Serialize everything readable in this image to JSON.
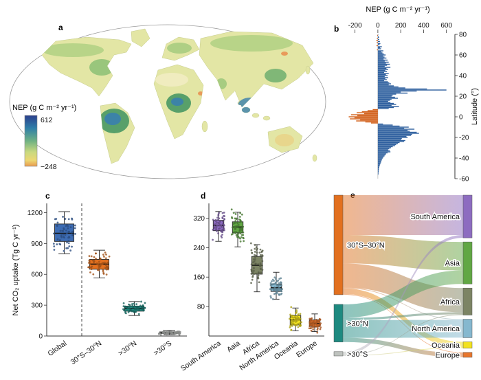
{
  "panel_a": {
    "label": "a",
    "legend_title": "NEP (g C m⁻² yr⁻¹)",
    "legend_max": "612",
    "legend_min": "−248"
  },
  "panel_b": {
    "label": "b",
    "title": "NEP (g C m⁻² yr⁻¹)",
    "ylabel": "Latitude (°)"
  },
  "panel_c": {
    "label": "c",
    "ylabel": "Net CO₂ uptake (Tg C yr⁻¹)"
  },
  "panel_d": {
    "label": "d"
  },
  "panel_e": {
    "label": "e"
  },
  "chart_data": [
    {
      "id": "a",
      "type": "heatmap",
      "title": "Global NEP map",
      "colorbar": {
        "title": "NEP (g C m⁻² yr⁻¹)",
        "min": -248,
        "max": 612
      }
    },
    {
      "id": "b",
      "type": "bar",
      "orientation": "horizontal",
      "title": "NEP (g C m⁻² yr⁻¹)",
      "ylabel": "Latitude (°)",
      "xlim": [
        -300,
        650
      ],
      "ylim": [
        -60,
        80
      ],
      "x_ticks": [
        -200,
        0,
        200,
        400,
        600
      ],
      "y_ticks": [
        80,
        60,
        40,
        20,
        0,
        -20,
        -40,
        -60
      ],
      "positive_color": "#2e5f9e",
      "negative_color": "#d2601a",
      "points": [
        [
          80,
          3
        ],
        [
          79,
          -6
        ],
        [
          78,
          6
        ],
        [
          77,
          10
        ],
        [
          76,
          -8
        ],
        [
          75,
          12
        ],
        [
          74,
          -14
        ],
        [
          73,
          18
        ],
        [
          72,
          -10
        ],
        [
          71,
          22
        ],
        [
          70,
          15
        ],
        [
          69,
          -12
        ],
        [
          68,
          35
        ],
        [
          67,
          20
        ],
        [
          66,
          28
        ],
        [
          65,
          -8
        ],
        [
          64,
          48
        ],
        [
          63,
          30
        ],
        [
          62,
          40
        ],
        [
          61,
          52
        ],
        [
          60,
          68
        ],
        [
          59,
          45
        ],
        [
          58,
          58
        ],
        [
          57,
          75
        ],
        [
          56,
          50
        ],
        [
          55,
          85
        ],
        [
          54,
          60
        ],
        [
          53,
          95
        ],
        [
          52,
          70
        ],
        [
          51,
          105
        ],
        [
          50,
          80
        ],
        [
          49,
          60
        ],
        [
          48,
          110
        ],
        [
          47,
          75
        ],
        [
          46,
          90
        ],
        [
          45,
          65
        ],
        [
          44,
          80
        ],
        [
          43,
          55
        ],
        [
          42,
          95
        ],
        [
          41,
          70
        ],
        [
          40,
          85
        ],
        [
          39,
          60
        ],
        [
          38,
          90
        ],
        [
          37,
          65
        ],
        [
          36,
          78
        ],
        [
          35,
          55
        ],
        [
          34,
          88
        ],
        [
          33,
          100
        ],
        [
          32,
          115
        ],
        [
          31,
          95
        ],
        [
          30,
          140
        ],
        [
          29,
          180
        ],
        [
          28,
          240
        ],
        [
          27,
          430
        ],
        [
          26,
          600
        ],
        [
          25,
          340
        ],
        [
          24,
          200
        ],
        [
          23,
          260
        ],
        [
          22,
          160
        ],
        [
          21,
          130
        ],
        [
          20,
          120
        ],
        [
          19,
          150
        ],
        [
          18,
          175
        ],
        [
          17,
          120
        ],
        [
          16,
          105
        ],
        [
          15,
          90
        ],
        [
          14,
          110
        ],
        [
          13,
          140
        ],
        [
          12,
          160
        ],
        [
          11,
          120
        ],
        [
          10,
          185
        ],
        [
          9,
          140
        ],
        [
          8,
          95
        ],
        [
          7,
          -45
        ],
        [
          6,
          -90
        ],
        [
          5,
          -140
        ],
        [
          4,
          -185
        ],
        [
          3,
          -120
        ],
        [
          2,
          -235
        ],
        [
          1,
          -180
        ],
        [
          0,
          -255
        ],
        [
          -1,
          -205
        ],
        [
          -2,
          -245
        ],
        [
          -3,
          -155
        ],
        [
          -4,
          -190
        ],
        [
          -5,
          -110
        ],
        [
          -6,
          -60
        ],
        [
          -7,
          45
        ],
        [
          -8,
          130
        ],
        [
          -9,
          190
        ],
        [
          -10,
          270
        ],
        [
          -11,
          230
        ],
        [
          -12,
          320
        ],
        [
          -13,
          260
        ],
        [
          -14,
          280
        ],
        [
          -15,
          340
        ],
        [
          -16,
          360
        ],
        [
          -17,
          300
        ],
        [
          -18,
          290
        ],
        [
          -19,
          250
        ],
        [
          -20,
          260
        ],
        [
          -21,
          210
        ],
        [
          -22,
          205
        ],
        [
          -23,
          240
        ],
        [
          -24,
          230
        ],
        [
          -25,
          190
        ],
        [
          -26,
          175
        ],
        [
          -27,
          160
        ],
        [
          -28,
          150
        ],
        [
          -29,
          130
        ],
        [
          -30,
          115
        ],
        [
          -31,
          100
        ],
        [
          -32,
          90
        ],
        [
          -33,
          105
        ],
        [
          -34,
          110
        ],
        [
          -35,
          85
        ],
        [
          -36,
          72
        ],
        [
          -37,
          65
        ],
        [
          -38,
          58
        ],
        [
          -39,
          50
        ],
        [
          -40,
          44
        ],
        [
          -41,
          38
        ],
        [
          -42,
          34
        ],
        [
          -43,
          30
        ],
        [
          -44,
          28
        ],
        [
          -45,
          24
        ],
        [
          -46,
          20
        ],
        [
          -47,
          17
        ],
        [
          -48,
          14
        ],
        [
          -49,
          12
        ],
        [
          -50,
          10
        ],
        [
          -51,
          9
        ],
        [
          -52,
          8
        ],
        [
          -53,
          7
        ],
        [
          -54,
          6
        ],
        [
          -55,
          5
        ],
        [
          -56,
          4
        ]
      ]
    },
    {
      "id": "c",
      "type": "box",
      "ylabel": "Net CO₂ uptake (Tg C yr⁻¹)",
      "ylim": [
        0,
        1290
      ],
      "y_ticks": [
        0,
        300,
        600,
        900,
        1200
      ],
      "categories": [
        "Global",
        "30°S–30°N",
        ">30°N",
        ">30°S"
      ],
      "colors": [
        "#3d6cb3",
        "#e2701f",
        "#1e8a80",
        "#bfc3bf"
      ],
      "boxes": [
        {
          "whisker_low": 800,
          "q1": 920,
          "median": 1000,
          "q3": 1090,
          "whisker_high": 1210
        },
        {
          "whisker_low": 565,
          "q1": 650,
          "median": 700,
          "q3": 745,
          "whisker_high": 835
        },
        {
          "whisker_low": 200,
          "q1": 242,
          "median": 265,
          "q3": 291,
          "whisker_high": 335
        },
        {
          "whisker_low": 14,
          "q1": 24,
          "median": 31,
          "q3": 40,
          "whisker_high": 55
        }
      ],
      "divider_after_index": 0,
      "n_points": 60
    },
    {
      "id": "d",
      "type": "box",
      "ylim": [
        0,
        360
      ],
      "y_ticks": [
        80,
        160,
        240,
        320
      ],
      "categories": [
        "South America",
        "Asia",
        "Africa",
        "North America",
        "Oceania",
        "Europe"
      ],
      "colors": [
        "#8d6cc0",
        "#61a744",
        "#7c8464",
        "#85b8cf",
        "#f2e21f",
        "#e8762c"
      ],
      "boxes": [
        {
          "whisker_low": 257,
          "q1": 286,
          "median": 300,
          "q3": 314,
          "whisker_high": 338
        },
        {
          "whisker_low": 242,
          "q1": 280,
          "median": 296,
          "q3": 310,
          "whisker_high": 336
        },
        {
          "whisker_low": 120,
          "q1": 168,
          "median": 192,
          "q3": 216,
          "whisker_high": 248
        },
        {
          "whisker_low": 100,
          "q1": 121,
          "median": 131,
          "q3": 141,
          "whisker_high": 173
        },
        {
          "whisker_low": 14,
          "q1": 30,
          "median": 44,
          "q3": 56,
          "whisker_high": 76
        },
        {
          "whisker_low": 12,
          "q1": 26,
          "median": 34,
          "q3": 44,
          "whisker_high": 60
        }
      ],
      "n_points": 60
    },
    {
      "id": "e",
      "type": "sankey",
      "left_nodes": [
        {
          "name": "30°S–30°N",
          "color": "#e2701f",
          "value": 700
        },
        {
          "name": ">30°N",
          "color": "#1e8a80",
          "value": 265
        },
        {
          "name": ">30°S",
          "color": "#bfc3bf",
          "value": 30
        }
      ],
      "right_nodes": [
        {
          "name": "South America",
          "color": "#8d6cc0",
          "value": 300
        },
        {
          "name": "Asia",
          "color": "#61a744",
          "value": 295
        },
        {
          "name": "Africa",
          "color": "#7c8464",
          "value": 190
        },
        {
          "name": "North America",
          "color": "#85b8cf",
          "value": 130
        },
        {
          "name": "Oceania",
          "color": "#f2e21f",
          "value": 45
        },
        {
          "name": "Europe",
          "color": "#e8762c",
          "value": 35
        }
      ],
      "flows": [
        {
          "source": 0,
          "target": 0,
          "value": 280
        },
        {
          "source": 0,
          "target": 1,
          "value": 200
        },
        {
          "source": 0,
          "target": 2,
          "value": 170
        },
        {
          "source": 0,
          "target": 3,
          "value": 5
        },
        {
          "source": 0,
          "target": 4,
          "value": 40
        },
        {
          "source": 0,
          "target": 5,
          "value": 5
        },
        {
          "source": 1,
          "target": 1,
          "value": 95
        },
        {
          "source": 1,
          "target": 2,
          "value": 15
        },
        {
          "source": 1,
          "target": 3,
          "value": 125
        },
        {
          "source": 1,
          "target": 5,
          "value": 30
        },
        {
          "source": 2,
          "target": 0,
          "value": 20
        },
        {
          "source": 2,
          "target": 2,
          "value": 5
        },
        {
          "source": 2,
          "target": 4,
          "value": 5
        }
      ]
    }
  ]
}
